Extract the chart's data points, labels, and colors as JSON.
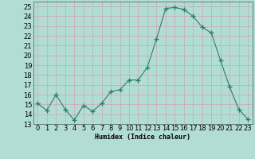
{
  "x": [
    0,
    1,
    2,
    3,
    4,
    5,
    6,
    7,
    8,
    9,
    10,
    11,
    12,
    13,
    14,
    15,
    16,
    17,
    18,
    19,
    20,
    21,
    22,
    23
  ],
  "y": [
    15.1,
    14.4,
    16.0,
    14.5,
    13.4,
    14.9,
    14.3,
    15.1,
    16.3,
    16.5,
    17.5,
    17.5,
    18.8,
    21.7,
    24.8,
    24.9,
    24.7,
    24.0,
    22.9,
    22.3,
    19.5,
    16.8,
    14.5,
    13.5
  ],
  "line_color": "#2e7d6e",
  "marker": "+",
  "marker_size": 4,
  "bg_color": "#b2ddd4",
  "grid_color_major": "#c9a9a9",
  "grid_color_minor": "#c9c9bb",
  "xlabel": "Humidex (Indice chaleur)",
  "xlim": [
    -0.5,
    23.5
  ],
  "ylim": [
    13,
    25.5
  ],
  "yticks": [
    13,
    14,
    15,
    16,
    17,
    18,
    19,
    20,
    21,
    22,
    23,
    24,
    25
  ],
  "xticks": [
    0,
    1,
    2,
    3,
    4,
    5,
    6,
    7,
    8,
    9,
    10,
    11,
    12,
    13,
    14,
    15,
    16,
    17,
    18,
    19,
    20,
    21,
    22,
    23
  ],
  "label_fontsize": 6,
  "tick_fontsize": 6
}
